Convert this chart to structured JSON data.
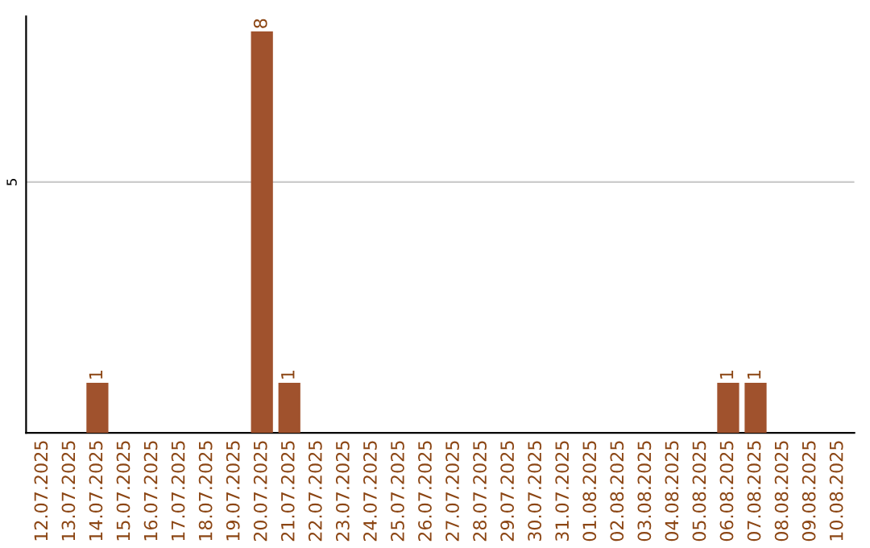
{
  "chart_data": {
    "type": "bar",
    "categories": [
      "12.07.2025",
      "13.07.2025",
      "14.07.2025",
      "15.07.2025",
      "16.07.2025",
      "17.07.2025",
      "18.07.2025",
      "19.07.2025",
      "20.07.2025",
      "21.07.2025",
      "22.07.2025",
      "23.07.2025",
      "24.07.2025",
      "25.07.2025",
      "26.07.2025",
      "27.07.2025",
      "28.07.2025",
      "29.07.2025",
      "30.07.2025",
      "31.07.2025",
      "01.08.2025",
      "02.08.2025",
      "03.08.2025",
      "04.08.2025",
      "05.08.2025",
      "06.08.2025",
      "07.08.2025",
      "08.08.2025",
      "09.08.2025",
      "10.08.2025"
    ],
    "values": [
      0,
      0,
      1,
      0,
      0,
      0,
      0,
      0,
      8,
      1,
      0,
      0,
      0,
      0,
      0,
      0,
      0,
      0,
      0,
      0,
      0,
      0,
      0,
      0,
      0,
      1,
      1,
      0,
      0,
      0
    ],
    "value_labels": [
      null,
      null,
      "1",
      null,
      null,
      null,
      null,
      null,
      "8",
      "1",
      null,
      null,
      null,
      null,
      null,
      null,
      null,
      null,
      null,
      null,
      null,
      null,
      null,
      null,
      null,
      "1",
      "1",
      null,
      null,
      null
    ],
    "color": "#a0522d",
    "ylim": [
      0,
      8.3
    ],
    "yticks": [
      5
    ],
    "grid": "y",
    "legend": false
  }
}
